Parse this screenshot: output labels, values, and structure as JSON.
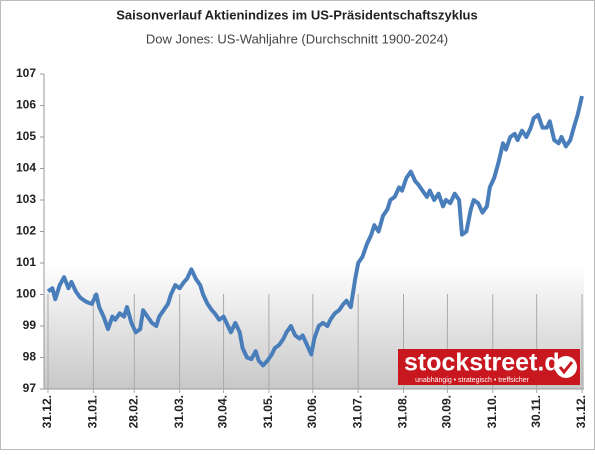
{
  "chart_data": {
    "type": "line",
    "title": "Saisonverlauf Aktienindizes im US-Präsidentschaftszyklus",
    "subtitle": "Dow Jones: US-Wahljahre (Durchschnitt 1900-2024)",
    "logo": "stockstreet.de",
    "logo_tagline": "unabhängig • strategisch • treffsicher",
    "color": "#4a7ebb",
    "x": [
      0,
      3,
      5,
      8,
      11,
      14,
      16,
      19,
      22,
      25,
      27,
      30,
      33,
      35,
      38,
      41,
      44,
      46,
      49,
      52,
      54,
      57,
      60,
      63,
      65,
      68,
      71,
      74,
      76,
      79,
      82,
      84,
      87,
      90,
      93,
      95,
      98,
      101,
      104,
      106,
      109,
      112,
      114,
      117,
      120,
      123,
      125,
      128,
      131,
      133,
      136,
      139,
      142,
      144,
      147,
      150,
      153,
      155,
      158,
      161,
      163,
      166,
      169,
      172,
      174,
      177,
      180,
      182,
      185,
      188,
      191,
      193,
      196,
      199,
      202,
      204,
      207,
      210,
      212,
      215,
      218,
      221,
      223,
      226,
      229,
      232,
      234,
      237,
      240,
      242,
      245,
      248,
      251,
      253,
      256,
      259,
      261,
      264,
      267,
      270,
      272,
      275,
      278,
      281,
      283,
      286,
      289,
      291,
      294,
      297,
      300,
      302,
      305,
      308,
      311,
      313,
      316,
      319,
      321,
      324,
      327,
      330,
      332,
      335,
      338,
      341,
      343,
      346,
      349,
      351,
      354,
      357,
      360,
      362,
      365
    ],
    "values": [
      100.1,
      100.2,
      99.85,
      100.3,
      100.55,
      100.2,
      100.4,
      100.1,
      99.9,
      99.8,
      99.75,
      99.7,
      100.0,
      99.6,
      99.3,
      98.9,
      99.3,
      99.2,
      99.4,
      99.3,
      99.6,
      99.1,
      98.8,
      98.9,
      99.5,
      99.3,
      99.1,
      99.0,
      99.3,
      99.5,
      99.7,
      100.0,
      100.3,
      100.2,
      100.4,
      100.5,
      100.8,
      100.5,
      100.3,
      100.0,
      99.7,
      99.5,
      99.4,
      99.2,
      99.3,
      99.0,
      98.8,
      99.1,
      98.8,
      98.3,
      98.0,
      97.95,
      98.2,
      97.9,
      97.75,
      97.9,
      98.1,
      98.3,
      98.4,
      98.6,
      98.8,
      99.0,
      98.7,
      98.6,
      98.7,
      98.4,
      98.1,
      98.6,
      99.0,
      99.1,
      99.0,
      99.2,
      99.4,
      99.5,
      99.7,
      99.8,
      99.6,
      100.5,
      101.0,
      101.2,
      101.6,
      101.9,
      102.2,
      102.0,
      102.5,
      102.7,
      103.0,
      103.1,
      103.4,
      103.3,
      103.7,
      103.9,
      103.6,
      103.5,
      103.3,
      103.1,
      103.3,
      103.0,
      103.2,
      102.8,
      103.0,
      102.9,
      103.2,
      103.0,
      101.9,
      102.0,
      102.7,
      103.0,
      102.9,
      102.6,
      102.8,
      103.4,
      103.7,
      104.2,
      104.8,
      104.6,
      105.0,
      105.1,
      104.9,
      105.2,
      105.0,
      105.3,
      105.6,
      105.7,
      105.3,
      105.3,
      105.5,
      104.9,
      104.8,
      105.0,
      104.7,
      104.9,
      105.4,
      105.7,
      106.3
    ],
    "xlim": [
      0,
      365
    ],
    "xticks": [
      {
        "value": 0,
        "label": "31.12."
      },
      {
        "value": 31,
        "label": "31.01."
      },
      {
        "value": 59,
        "label": "28.02."
      },
      {
        "value": 90,
        "label": "31.03."
      },
      {
        "value": 120,
        "label": "30.04."
      },
      {
        "value": 151,
        "label": "31.05."
      },
      {
        "value": 181,
        "label": "30.06."
      },
      {
        "value": 212,
        "label": "31.07."
      },
      {
        "value": 243,
        "label": "31.08."
      },
      {
        "value": 273,
        "label": "30.09."
      },
      {
        "value": 304,
        "label": "31.10."
      },
      {
        "value": 334,
        "label": "30.11."
      },
      {
        "value": 365,
        "label": "31.12."
      }
    ],
    "ylim": [
      97,
      107
    ],
    "yticks": [
      97,
      98,
      99,
      100,
      101,
      102,
      103,
      104,
      105,
      106,
      107
    ]
  }
}
